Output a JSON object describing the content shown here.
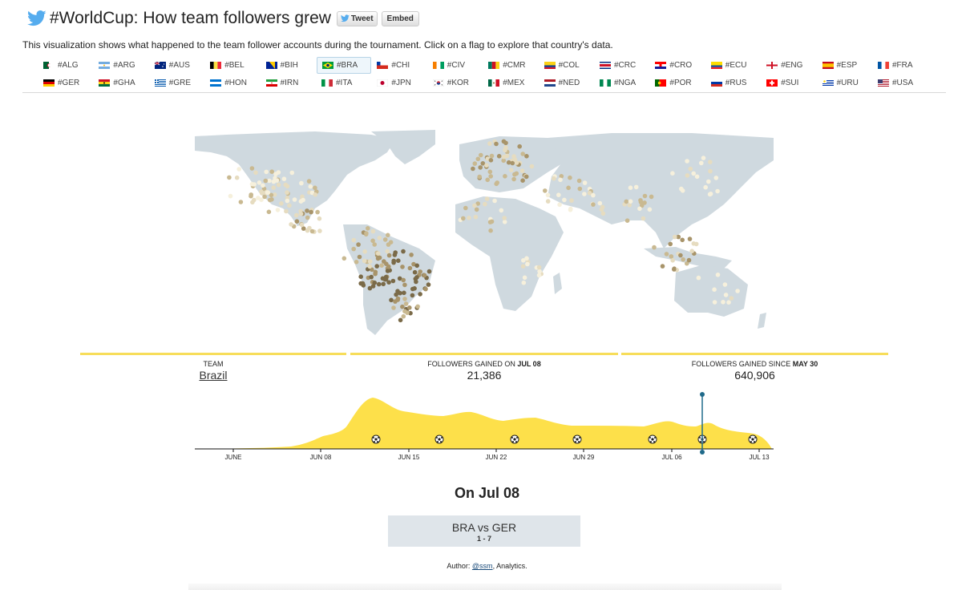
{
  "header": {
    "title": "#WorldCup: How team followers grew",
    "tweet_label": "Tweet",
    "embed_label": "Embed",
    "bird_color": "#55acee"
  },
  "description": "This visualization shows what happened to the team follower accounts during the tournament. Click on a flag to explore that country's data.",
  "flags": {
    "selected": "#BRA",
    "rows": [
      [
        {
          "tag": "#ALG",
          "flag": "algeria-flag-icon"
        },
        {
          "tag": "#ARG",
          "flag": "argentina-flag-icon"
        },
        {
          "tag": "#AUS",
          "flag": "australia-flag-icon"
        },
        {
          "tag": "#BEL",
          "flag": "belgium-flag-icon"
        },
        {
          "tag": "#BIH",
          "flag": "bosnia-flag-icon"
        },
        {
          "tag": "#BRA",
          "flag": "brazil-flag-icon"
        },
        {
          "tag": "#CHI",
          "flag": "chile-flag-icon"
        },
        {
          "tag": "#CIV",
          "flag": "ivory-coast-flag-icon"
        },
        {
          "tag": "#CMR",
          "flag": "cameroon-flag-icon"
        },
        {
          "tag": "#COL",
          "flag": "colombia-flag-icon"
        },
        {
          "tag": "#CRC",
          "flag": "costa-rica-flag-icon"
        },
        {
          "tag": "#CRO",
          "flag": "croatia-flag-icon"
        },
        {
          "tag": "#ECU",
          "flag": "ecuador-flag-icon"
        },
        {
          "tag": "#ENG",
          "flag": "england-flag-icon"
        },
        {
          "tag": "#ESP",
          "flag": "spain-flag-icon"
        },
        {
          "tag": "#FRA",
          "flag": "france-flag-icon"
        }
      ],
      [
        {
          "tag": "#GER",
          "flag": "germany-flag-icon"
        },
        {
          "tag": "#GHA",
          "flag": "ghana-flag-icon"
        },
        {
          "tag": "#GRE",
          "flag": "greece-flag-icon"
        },
        {
          "tag": "#HON",
          "flag": "honduras-flag-icon"
        },
        {
          "tag": "#IRN",
          "flag": "iran-flag-icon"
        },
        {
          "tag": "#ITA",
          "flag": "italy-flag-icon"
        },
        {
          "tag": "#JPN",
          "flag": "japan-flag-icon"
        },
        {
          "tag": "#KOR",
          "flag": "korea-flag-icon"
        },
        {
          "tag": "#MEX",
          "flag": "mexico-flag-icon"
        },
        {
          "tag": "#NED",
          "flag": "netherlands-flag-icon"
        },
        {
          "tag": "#NGA",
          "flag": "nigeria-flag-icon"
        },
        {
          "tag": "#POR",
          "flag": "portugal-flag-icon"
        },
        {
          "tag": "#RUS",
          "flag": "russia-flag-icon"
        },
        {
          "tag": "#SUI",
          "flag": "switzerland-flag-icon"
        },
        {
          "tag": "#URU",
          "flag": "uruguay-flag-icon"
        },
        {
          "tag": "#USA",
          "flag": "usa-flag-icon"
        }
      ]
    ]
  },
  "stats": {
    "team_label": "TEAM",
    "team_value": "Brazil",
    "gained_on_label": "FOLLOWERS GAINED ON",
    "gained_on_date": "JUL 08",
    "gained_on_value": "21,386",
    "gained_since_label": "FOLLOWERS GAINED SINCE",
    "gained_since_date": "MAY 30",
    "gained_since_value": "640,906",
    "accent_color": "#f7dd5a"
  },
  "timeline": {
    "fill_color": "#fde04a",
    "marker_color": "#1f6a8a",
    "tick_labels": [
      "JUNE",
      "JUN 08",
      "JUN 15",
      "JUN 22",
      "JUN 29",
      "JUL 06",
      "JUL 13"
    ],
    "match_icon": "soccer-ball-icon",
    "selected_date": "Jul 08"
  },
  "match": {
    "heading": "On Jul 08",
    "teams": "BRA vs GER",
    "score": "1 - 7"
  },
  "author": {
    "prefix": "Author: ",
    "handle": "@ssm",
    "suffix": ", Analytics."
  },
  "map": {
    "land_color": "#cfd9df",
    "dot_colors": [
      "#f6f0dc",
      "#e6dcc0",
      "#c9b991",
      "#a8946a",
      "#7a6a48"
    ]
  }
}
